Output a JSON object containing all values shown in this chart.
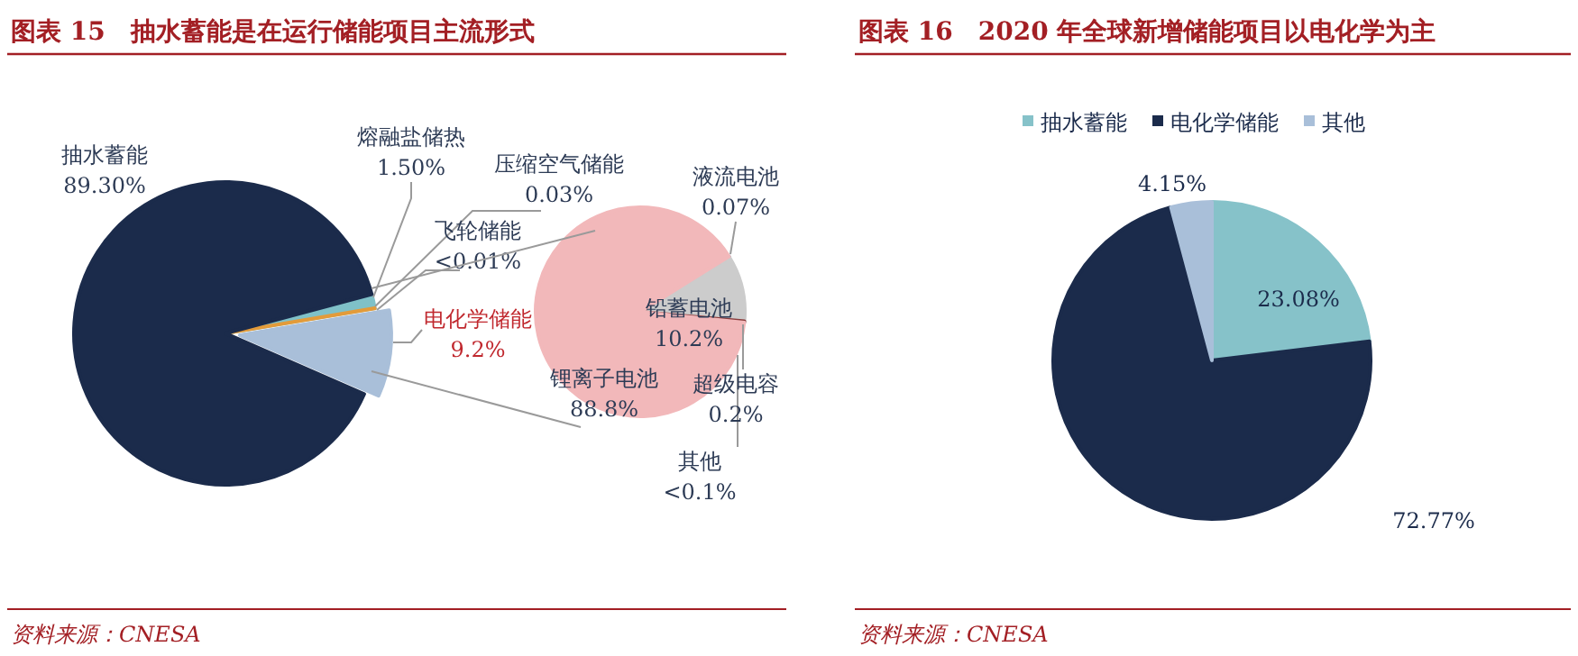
{
  "chart_data": [
    {
      "type": "pie",
      "title": "图表 15　抽水蓄能是在运行储能项目主流形式",
      "categories": [
        "熔融盐储热",
        "压缩空气储能",
        "飞轮储能",
        "电化学储能",
        "抽水蓄能"
      ],
      "values": [
        1.5,
        0.03,
        null,
        9.2,
        89.3
      ],
      "value_labels": [
        "1.50%",
        "0.03%",
        "<0.01%",
        "9.2%",
        "89.30%"
      ],
      "colors": [
        "#7fc1c8",
        "#e39b3a",
        null,
        "#a9bfd9",
        "#1b2b4b"
      ],
      "annotations": [
        "资料来源：CNESA"
      ]
    },
    {
      "type": "pie",
      "categories": [
        "液流电池",
        "铅蓄电池",
        "超级电容",
        "其他",
        "锂离子电池"
      ],
      "values": [
        0.07,
        10.2,
        0.2,
        null,
        88.8
      ],
      "value_labels": [
        "0.07%",
        "10.2%",
        "0.2%",
        "<0.1%",
        "88.8%"
      ],
      "colors": [
        "#4a7db5",
        "#cccccc",
        "#8a3d3d",
        null,
        "#f2b8ba"
      ]
    },
    {
      "type": "pie",
      "title": "图表 16　2020 年全球新增储能项目以电化学为主",
      "categories": [
        "抽水蓄能",
        "电化学储能",
        "其他"
      ],
      "values": [
        23.08,
        72.77,
        4.15
      ],
      "value_labels": [
        "23.08%",
        "72.77%",
        "4.15%"
      ],
      "colors": [
        "#86c2c9",
        "#1b2b4b",
        "#a9bfd9"
      ],
      "legend": "top",
      "annotations": [
        "资料来源：CNESA"
      ]
    }
  ]
}
